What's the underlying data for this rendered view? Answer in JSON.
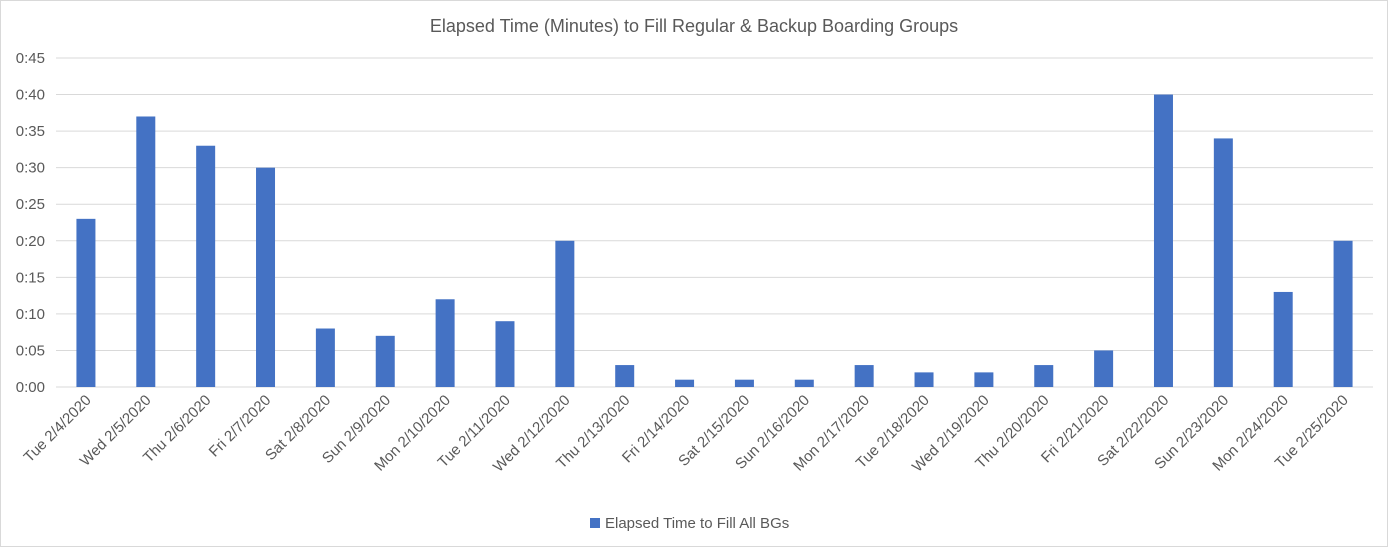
{
  "chart_data": {
    "type": "bar",
    "title": "Elapsed Time (Minutes) to Fill Regular & Backup Boarding Groups",
    "xlabel": "",
    "ylabel": "",
    "ylim": [
      0,
      0.45
    ],
    "yticks": [
      "0:00",
      "0:05",
      "0:10",
      "0:15",
      "0:20",
      "0:25",
      "0:30",
      "0:35",
      "0:40",
      "0:45"
    ],
    "grid": true,
    "legend_position": "bottom",
    "categories": [
      "Tue 2/4/2020",
      "Wed 2/5/2020",
      "Thu 2/6/2020",
      "Fri 2/7/2020",
      "Sat 2/8/2020",
      "Sun 2/9/2020",
      "Mon 2/10/2020",
      "Tue 2/11/2020",
      "Wed 2/12/2020",
      "Thu 2/13/2020",
      "Fri 2/14/2020",
      "Sat 2/15/2020",
      "Sun 2/16/2020",
      "Mon 2/17/2020",
      "Tue 2/18/2020",
      "Wed 2/19/2020",
      "Thu 2/20/2020",
      "Fri 2/21/2020",
      "Sat 2/22/2020",
      "Sun 2/23/2020",
      "Mon 2/24/2020",
      "Tue 2/25/2020"
    ],
    "series": [
      {
        "name": "Elapsed Time to Fill All BGs",
        "color": "#4472c4",
        "values": [
          0.23,
          0.37,
          0.33,
          0.3,
          0.08,
          0.07,
          0.12,
          0.09,
          0.2,
          0.03,
          0.01,
          0.01,
          0.01,
          0.03,
          0.02,
          0.02,
          0.03,
          0.05,
          0.4,
          0.34,
          0.13,
          0.2
        ]
      }
    ]
  }
}
